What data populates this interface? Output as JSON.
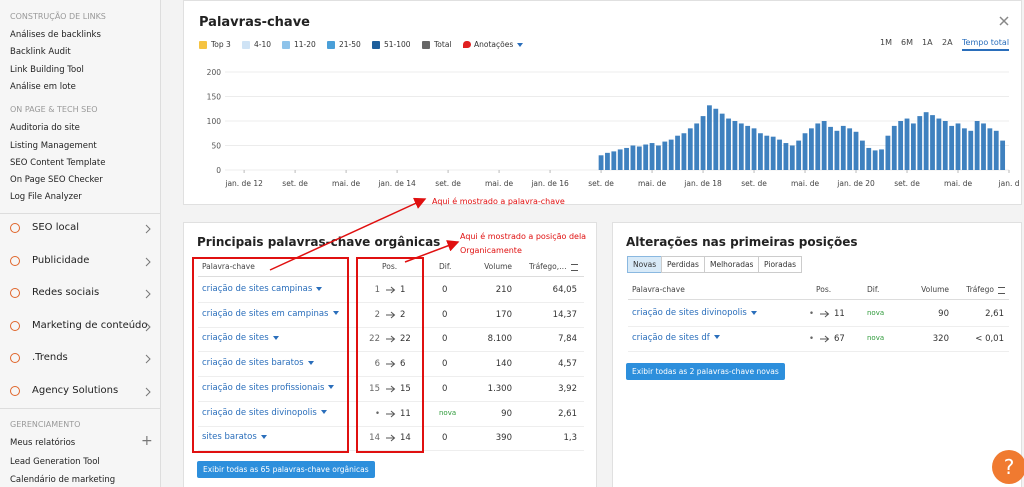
{
  "sidebar": {
    "groups": [
      {
        "heading": "CONSTRUÇÃO DE LINKS",
        "items": [
          "Análises de backlinks",
          "Backlink Audit",
          "Link Building Tool",
          "Análise em lote"
        ]
      },
      {
        "heading": "ON PAGE & TECH SEO",
        "items": [
          "Auditoria do site",
          "Listing Management",
          "SEO Content Template",
          "On Page SEO Checker",
          "Log File Analyzer"
        ]
      }
    ],
    "menu": [
      "SEO local",
      "Publicidade",
      "Redes sociais",
      "Marketing de conteúdo",
      ".Trends",
      "Agency Solutions"
    ],
    "management": {
      "heading": "GERENCIAMENTO",
      "items": [
        "Meus relatórios",
        "Lead Generation Tool",
        "Calendário de marketing"
      ]
    }
  },
  "chart_data": {
    "type": "bar",
    "title": "Palavras-chave",
    "legend": [
      {
        "name": "Top 3",
        "color": "#f5c342"
      },
      {
        "name": "4-10",
        "color": "#cfe3f5"
      },
      {
        "name": "11-20",
        "color": "#8ec3ea"
      },
      {
        "name": "21-50",
        "color": "#4a9fd8"
      },
      {
        "name": "51-100",
        "color": "#1d5e9b"
      },
      {
        "name": "Total",
        "color": "#666666"
      }
    ],
    "annotations": "Anotações",
    "periods": [
      "1M",
      "6M",
      "1A",
      "2A",
      "Tempo total"
    ],
    "active_period": 4,
    "color": "#2a73b8",
    "ylim": [
      0,
      200
    ],
    "yticks": [
      0,
      50,
      100,
      150,
      200
    ],
    "xlim": [
      -3,
      120
    ],
    "xticks": [
      {
        "value": 0,
        "label": "jan. de 12"
      },
      {
        "value": 8,
        "label": "set. de"
      },
      {
        "value": 16,
        "label": "mai. de"
      },
      {
        "value": 24,
        "label": "jan. de 14"
      },
      {
        "value": 32,
        "label": "set. de"
      },
      {
        "value": 40,
        "label": "mai. de"
      },
      {
        "value": 48,
        "label": "jan. de 16"
      },
      {
        "value": 56,
        "label": "set. de"
      },
      {
        "value": 64,
        "label": "mai. de"
      },
      {
        "value": 72,
        "label": "jan. de 18"
      },
      {
        "value": 80,
        "label": "set. de"
      },
      {
        "value": 88,
        "label": "mai. de"
      },
      {
        "value": 96,
        "label": "jan. de 20"
      },
      {
        "value": 104,
        "label": "set. de"
      },
      {
        "value": 112,
        "label": "mai. de"
      },
      {
        "value": 120,
        "label": "jan. d"
      }
    ],
    "x": [
      56,
      57,
      58,
      59,
      60,
      61,
      62,
      63,
      64,
      65,
      66,
      67,
      68,
      69,
      70,
      71,
      72,
      73,
      74,
      75,
      76,
      77,
      78,
      79,
      80,
      81,
      82,
      83,
      84,
      85,
      86,
      87,
      88,
      89,
      90,
      91,
      92,
      93,
      94,
      95,
      96,
      97,
      98,
      99,
      100,
      101,
      102,
      103,
      104,
      105,
      106,
      107,
      108,
      109,
      110,
      111,
      112,
      113,
      114,
      115,
      116,
      117,
      118,
      119
    ],
    "values": [
      30,
      35,
      38,
      42,
      45,
      50,
      48,
      52,
      55,
      50,
      58,
      62,
      70,
      75,
      85,
      95,
      110,
      132,
      125,
      115,
      105,
      100,
      95,
      90,
      85,
      75,
      70,
      68,
      62,
      55,
      50,
      60,
      75,
      85,
      95,
      100,
      88,
      80,
      90,
      85,
      78,
      60,
      45,
      40,
      42,
      70,
      90,
      100,
      105,
      95,
      110,
      118,
      112,
      105,
      100,
      90,
      95,
      85,
      80,
      100,
      95,
      85,
      80,
      60
    ]
  },
  "organic": {
    "title": "Principais palavras-chave orgânicas",
    "headers": [
      "Palavra-chave",
      "Pos.",
      "Dif.",
      "Volume",
      "Tráfego, %"
    ],
    "rows": [
      {
        "keyword": "criação de sites campinas",
        "from": "1",
        "to": "1",
        "dif": "0",
        "volume": "210",
        "traffic": "64,05"
      },
      {
        "keyword": "criação de sites em campinas",
        "from": "2",
        "to": "2",
        "dif": "0",
        "volume": "170",
        "traffic": "14,37"
      },
      {
        "keyword": "criação de sites",
        "from": "22",
        "to": "22",
        "dif": "0",
        "volume": "8.100",
        "traffic": "7,84"
      },
      {
        "keyword": "criação de sites baratos",
        "from": "6",
        "to": "6",
        "dif": "0",
        "volume": "140",
        "traffic": "4,57"
      },
      {
        "keyword": "criação de sites profissionais",
        "from": "15",
        "to": "15",
        "dif": "0",
        "volume": "1.300",
        "traffic": "3,92"
      },
      {
        "keyword": "criação de sites divinopolis",
        "from": "•",
        "to": "11",
        "dif": "nova",
        "volume": "90",
        "traffic": "2,61"
      },
      {
        "keyword": "sites baratos",
        "from": "14",
        "to": "14",
        "dif": "0",
        "volume": "390",
        "traffic": "1,3"
      }
    ],
    "button": "Exibir todas as 65 palavras-chave orgânicas"
  },
  "notes": {
    "keyword": "Aqui é mostrado a palavra-chave",
    "position": [
      "Aqui é mostrado a posição dela",
      "Organicamente"
    ]
  },
  "changes": {
    "title": "Alterações nas primeiras posições",
    "tabs": [
      "Novas",
      "Perdidas",
      "Melhoradas",
      "Pioradas"
    ],
    "active_tab": 0,
    "headers": [
      "Palavra-chave",
      "Pos.",
      "Dif.",
      "Volume",
      "Tráfego"
    ],
    "rows": [
      {
        "keyword": "criação de sites divinopolis",
        "from": "•",
        "to": "11",
        "dif": "nova",
        "volume": "90",
        "traffic": "2,61"
      },
      {
        "keyword": "criação de sites df",
        "from": "•",
        "to": "67",
        "dif": "nova",
        "volume": "320",
        "traffic": "< 0,01"
      }
    ],
    "button": "Exibir todas as 2 palavras-chave novas"
  },
  "help": "?"
}
